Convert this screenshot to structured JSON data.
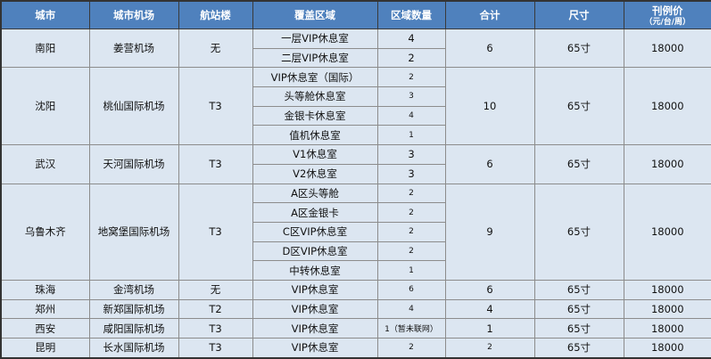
{
  "headers": {
    "city": "城市",
    "airport": "城市机场",
    "terminal": "航站楼",
    "area": "覆盖区域",
    "count": "区域数量",
    "total": "合计",
    "size": "尺寸",
    "price": "刊例价",
    "price_unit": "（元/台/周）"
  },
  "colors": {
    "header_bg": "#4f81bd",
    "cell_bg": "#dce6f1"
  },
  "rows": [
    {
      "city": "南阳",
      "airport": "姜营机场",
      "terminal": "无",
      "total": "6",
      "size": "65寸",
      "price": "18000",
      "areas": [
        {
          "name": "一层VIP休息室",
          "count": "4"
        },
        {
          "name": "二层VIP休息室",
          "count": "2"
        }
      ]
    },
    {
      "city": "沈阳",
      "airport": "桃仙国际机场",
      "terminal": "T3",
      "total": "10",
      "size": "65寸",
      "price": "18000",
      "areas": [
        {
          "name": "VIP休息室（国际）",
          "count": "2"
        },
        {
          "name": "头等舱休息室",
          "count": "3"
        },
        {
          "name": "金银卡休息室",
          "count": "4"
        },
        {
          "name": "值机休息室",
          "count": "1"
        }
      ]
    },
    {
      "city": "武汉",
      "airport": "天河国际机场",
      "terminal": "T3",
      "total": "6",
      "size": "65寸",
      "price": "18000",
      "areas": [
        {
          "name": "V1休息室",
          "count": "3"
        },
        {
          "name": "V2休息室",
          "count": "3"
        }
      ]
    },
    {
      "city": "乌鲁木齐",
      "airport": "地窝堡国际机场",
      "terminal": "T3",
      "total": "9",
      "size": "65寸",
      "price": "18000",
      "areas": [
        {
          "name": "A区头等舱",
          "count": "2"
        },
        {
          "name": "A区金银卡",
          "count": "2"
        },
        {
          "name": "C区VIP休息室",
          "count": "2"
        },
        {
          "name": "D区VIP休息室",
          "count": "2"
        },
        {
          "name": "中转休息室",
          "count": "1"
        }
      ]
    },
    {
      "city": "珠海",
      "airport": "金湾机场",
      "terminal": "无",
      "total": "6",
      "size": "65寸",
      "price": "18000",
      "areas": [
        {
          "name": "VIP休息室",
          "count": "6"
        }
      ]
    },
    {
      "city": "郑州",
      "airport": "新郑国际机场",
      "terminal": "T2",
      "total": "4",
      "size": "65寸",
      "price": "18000",
      "areas": [
        {
          "name": "VIP休息室",
          "count": "4"
        }
      ]
    },
    {
      "city": "西安",
      "airport": "咸阳国际机场",
      "terminal": "T3",
      "total": "1",
      "size": "65寸",
      "price": "18000",
      "areas": [
        {
          "name": "VIP休息室",
          "count": "1（暂未联网）"
        }
      ]
    },
    {
      "city": "昆明",
      "airport": "长水国际机场",
      "terminal": "T3",
      "total": "2",
      "size": "65寸",
      "price": "18000",
      "areas": [
        {
          "name": "VIP休息室",
          "count": "2"
        }
      ]
    }
  ]
}
